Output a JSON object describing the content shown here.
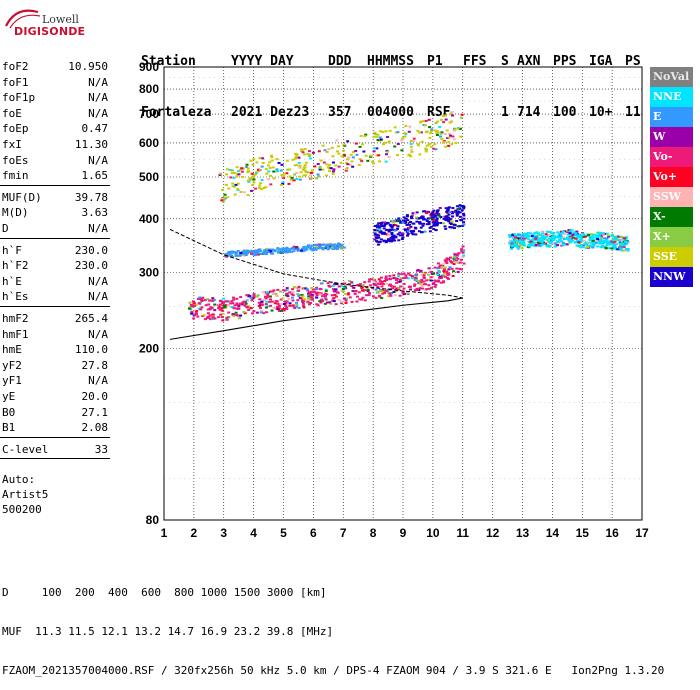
{
  "logo": {
    "line1": "Lowell",
    "line2": "DIGISONDE"
  },
  "header": {
    "row1": [
      "Station",
      "YYYY DAY",
      "DDD",
      "HHMMSS",
      "P1",
      "FFS",
      "S",
      "AXN",
      "PPS",
      "IGA",
      "PS"
    ],
    "row2": [
      "Fortaleza",
      "2021 Dez23",
      "357",
      "004000",
      "RSF",
      "",
      "1",
      "714",
      "100",
      "10+",
      "11"
    ]
  },
  "params": {
    "group1": [
      {
        "name": "foF2",
        "value": "10.950"
      },
      {
        "name": "foF1",
        "value": "N/A"
      },
      {
        "name": "foF1p",
        "value": "N/A"
      },
      {
        "name": "foE",
        "value": "N/A"
      },
      {
        "name": "foEp",
        "value": "0.47"
      },
      {
        "name": "fxI",
        "value": "11.30"
      },
      {
        "name": "foEs",
        "value": "N/A"
      },
      {
        "name": "fmin",
        "value": "1.65"
      }
    ],
    "group2": [
      {
        "name": "MUF(D)",
        "value": "39.78"
      },
      {
        "name": "M(D)",
        "value": "3.63"
      },
      {
        "name": "D",
        "value": "N/A"
      }
    ],
    "group3": [
      {
        "name": "h`F",
        "value": "230.0"
      },
      {
        "name": "h`F2",
        "value": "230.0"
      },
      {
        "name": "h`E",
        "value": "N/A"
      },
      {
        "name": "h`Es",
        "value": "N/A"
      }
    ],
    "group4": [
      {
        "name": "hmF2",
        "value": "265.4"
      },
      {
        "name": "hmF1",
        "value": "N/A"
      },
      {
        "name": "hmE",
        "value": "110.0"
      },
      {
        "name": "yF2",
        "value": "27.8"
      },
      {
        "name": "yF1",
        "value": "N/A"
      },
      {
        "name": "yE",
        "value": "20.0"
      },
      {
        "name": "B0",
        "value": "27.1"
      },
      {
        "name": "B1",
        "value": "2.08"
      }
    ],
    "group5": [
      {
        "name": "C-level",
        "value": "33"
      }
    ],
    "auto": [
      "Auto:",
      "Artist5",
      "500200"
    ]
  },
  "legend": [
    {
      "label": "NoVal",
      "color": "#808080"
    },
    {
      "label": "NNE",
      "color": "#00e5ff"
    },
    {
      "label": "E",
      "color": "#3399ff"
    },
    {
      "label": "W",
      "color": "#9900a8"
    },
    {
      "label": "Vo-",
      "color": "#ee1a7a"
    },
    {
      "label": "Vo+",
      "color": "#ff0022"
    },
    {
      "label": "SSW",
      "color": "#ffb3b3"
    },
    {
      "label": "X-",
      "color": "#007a00"
    },
    {
      "label": "X+",
      "color": "#88cc44"
    },
    {
      "label": "SSE",
      "color": "#cccc00"
    },
    {
      "label": "NNW",
      "color": "#1a00cc"
    }
  ],
  "footer": {
    "line1": "D     100  200  400  600  800 1000 1500 3000 [km]",
    "line2": "MUF  11.3 11.5 12.1 13.2 14.7 16.9 23.2 39.8 [MHz]",
    "line3": "FZAOM_2021357004000.RSF / 320fx256h 50 kHz 5.0 km / DPS-4 FZAOM 904 / 3.9 S 321.6 E   Ion2Png 1.3.20"
  },
  "chart_data": {
    "type": "scatter",
    "title": "",
    "xlabel": "",
    "ylabel": "",
    "xlim": [
      1,
      17
    ],
    "ylim": [
      80,
      900
    ],
    "yscale": "log",
    "x_ticks": [
      1,
      2,
      3,
      4,
      5,
      6,
      7,
      8,
      9,
      10,
      11,
      12,
      13,
      14,
      15,
      16,
      17
    ],
    "y_ticks": [
      80,
      200,
      300,
      400,
      500,
      600,
      700,
      800,
      900
    ],
    "grid": true,
    "series": [
      {
        "name": "Vo-",
        "color": "#ee1a7a",
        "trace": [
          [
            1.8,
            250
          ],
          [
            3,
            248
          ],
          [
            4,
            255
          ],
          [
            5,
            262
          ],
          [
            6,
            268
          ],
          [
            7,
            272
          ],
          [
            8,
            278
          ],
          [
            9,
            284
          ],
          [
            10,
            295
          ],
          [
            10.5,
            310
          ],
          [
            11,
            330
          ]
        ]
      },
      {
        "name": "E",
        "color": "#3399ff",
        "trace": [
          [
            3,
            332
          ],
          [
            4,
            336
          ],
          [
            5,
            340
          ],
          [
            6,
            345
          ],
          [
            7,
            348
          ]
        ]
      },
      {
        "name": "NNW",
        "color": "#1a00cc",
        "trace": [
          [
            8,
            370
          ],
          [
            8.5,
            375
          ],
          [
            9,
            385
          ],
          [
            9.5,
            395
          ],
          [
            10,
            400
          ],
          [
            10.5,
            405
          ],
          [
            11,
            410
          ]
        ]
      },
      {
        "name": "NNE",
        "color": "#00e5ff",
        "trace": [
          [
            12.5,
            355
          ],
          [
            13,
            358
          ],
          [
            13.5,
            362
          ],
          [
            14,
            360
          ],
          [
            14.5,
            365
          ],
          [
            15,
            358
          ],
          [
            15.5,
            360
          ],
          [
            16,
            355
          ],
          [
            16.5,
            352
          ]
        ]
      },
      {
        "name": "SSE",
        "color": "#cccc00",
        "trace": [
          [
            2.8,
            480
          ],
          [
            3.5,
            490
          ],
          [
            4,
            510
          ],
          [
            5,
            530
          ],
          [
            6,
            540
          ],
          [
            7,
            570
          ],
          [
            8,
            590
          ],
          [
            9,
            610
          ],
          [
            10,
            630
          ],
          [
            10.5,
            650
          ],
          [
            11,
            670
          ]
        ]
      }
    ],
    "profile_lower": [
      [
        1.2,
        210
      ],
      [
        3,
        220
      ],
      [
        5,
        232
      ],
      [
        7,
        242
      ],
      [
        9,
        252
      ],
      [
        10.5,
        258
      ],
      [
        11,
        262
      ]
    ],
    "profile_upper": [
      [
        1.2,
        378
      ],
      [
        3,
        330
      ],
      [
        5,
        298
      ],
      [
        7,
        282
      ],
      [
        9,
        272
      ],
      [
        10.5,
        266
      ],
      [
        11,
        262
      ]
    ]
  }
}
